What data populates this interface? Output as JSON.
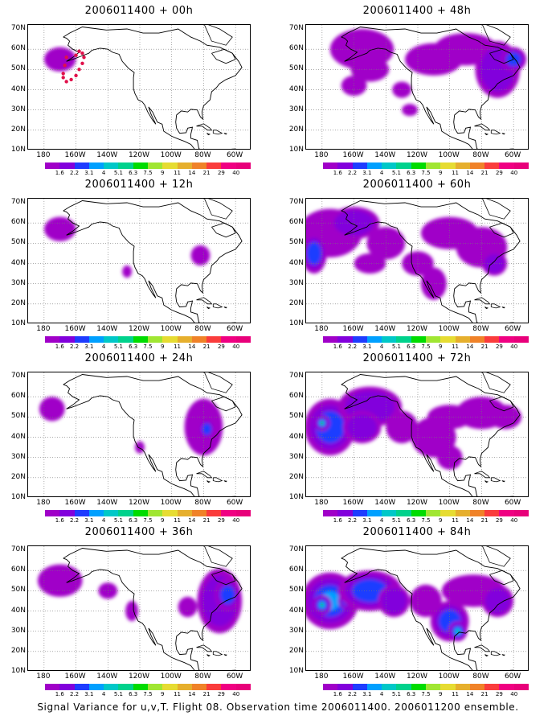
{
  "panels": [
    {
      "title": "2006011400 + 00h"
    },
    {
      "title": "2006011400 + 48h"
    },
    {
      "title": "2006011400 + 12h"
    },
    {
      "title": "2006011400 + 60h"
    },
    {
      "title": "2006011400 + 24h"
    },
    {
      "title": "2006011400 + 72h"
    },
    {
      "title": "2006011400 + 36h"
    },
    {
      "title": "2006011400 + 84h"
    }
  ],
  "lat_labels": [
    "70N",
    "60N",
    "50N",
    "40N",
    "30N",
    "20N",
    "10N"
  ],
  "lon_labels": [
    "180",
    "160W",
    "140W",
    "120W",
    "100W",
    "80W",
    "60W"
  ],
  "colorbar": {
    "labels": [
      "1.6",
      "2.2",
      "3.1",
      "4",
      "5.1",
      "6.3",
      "7.5",
      "9",
      "11",
      "14",
      "21",
      "29",
      "40"
    ],
    "colors": [
      "#a000c8",
      "#8200dc",
      "#1e3cff",
      "#00a0ff",
      "#00c8c8",
      "#00d28c",
      "#00dc00",
      "#a0e632",
      "#e6dc32",
      "#e6af2d",
      "#f08228",
      "#fa3c3c",
      "#f00082"
    ]
  },
  "footer": "Signal Variance for u,v,T. Flight 08. Observation time 2006011400. 2006011200 ensemble."
}
